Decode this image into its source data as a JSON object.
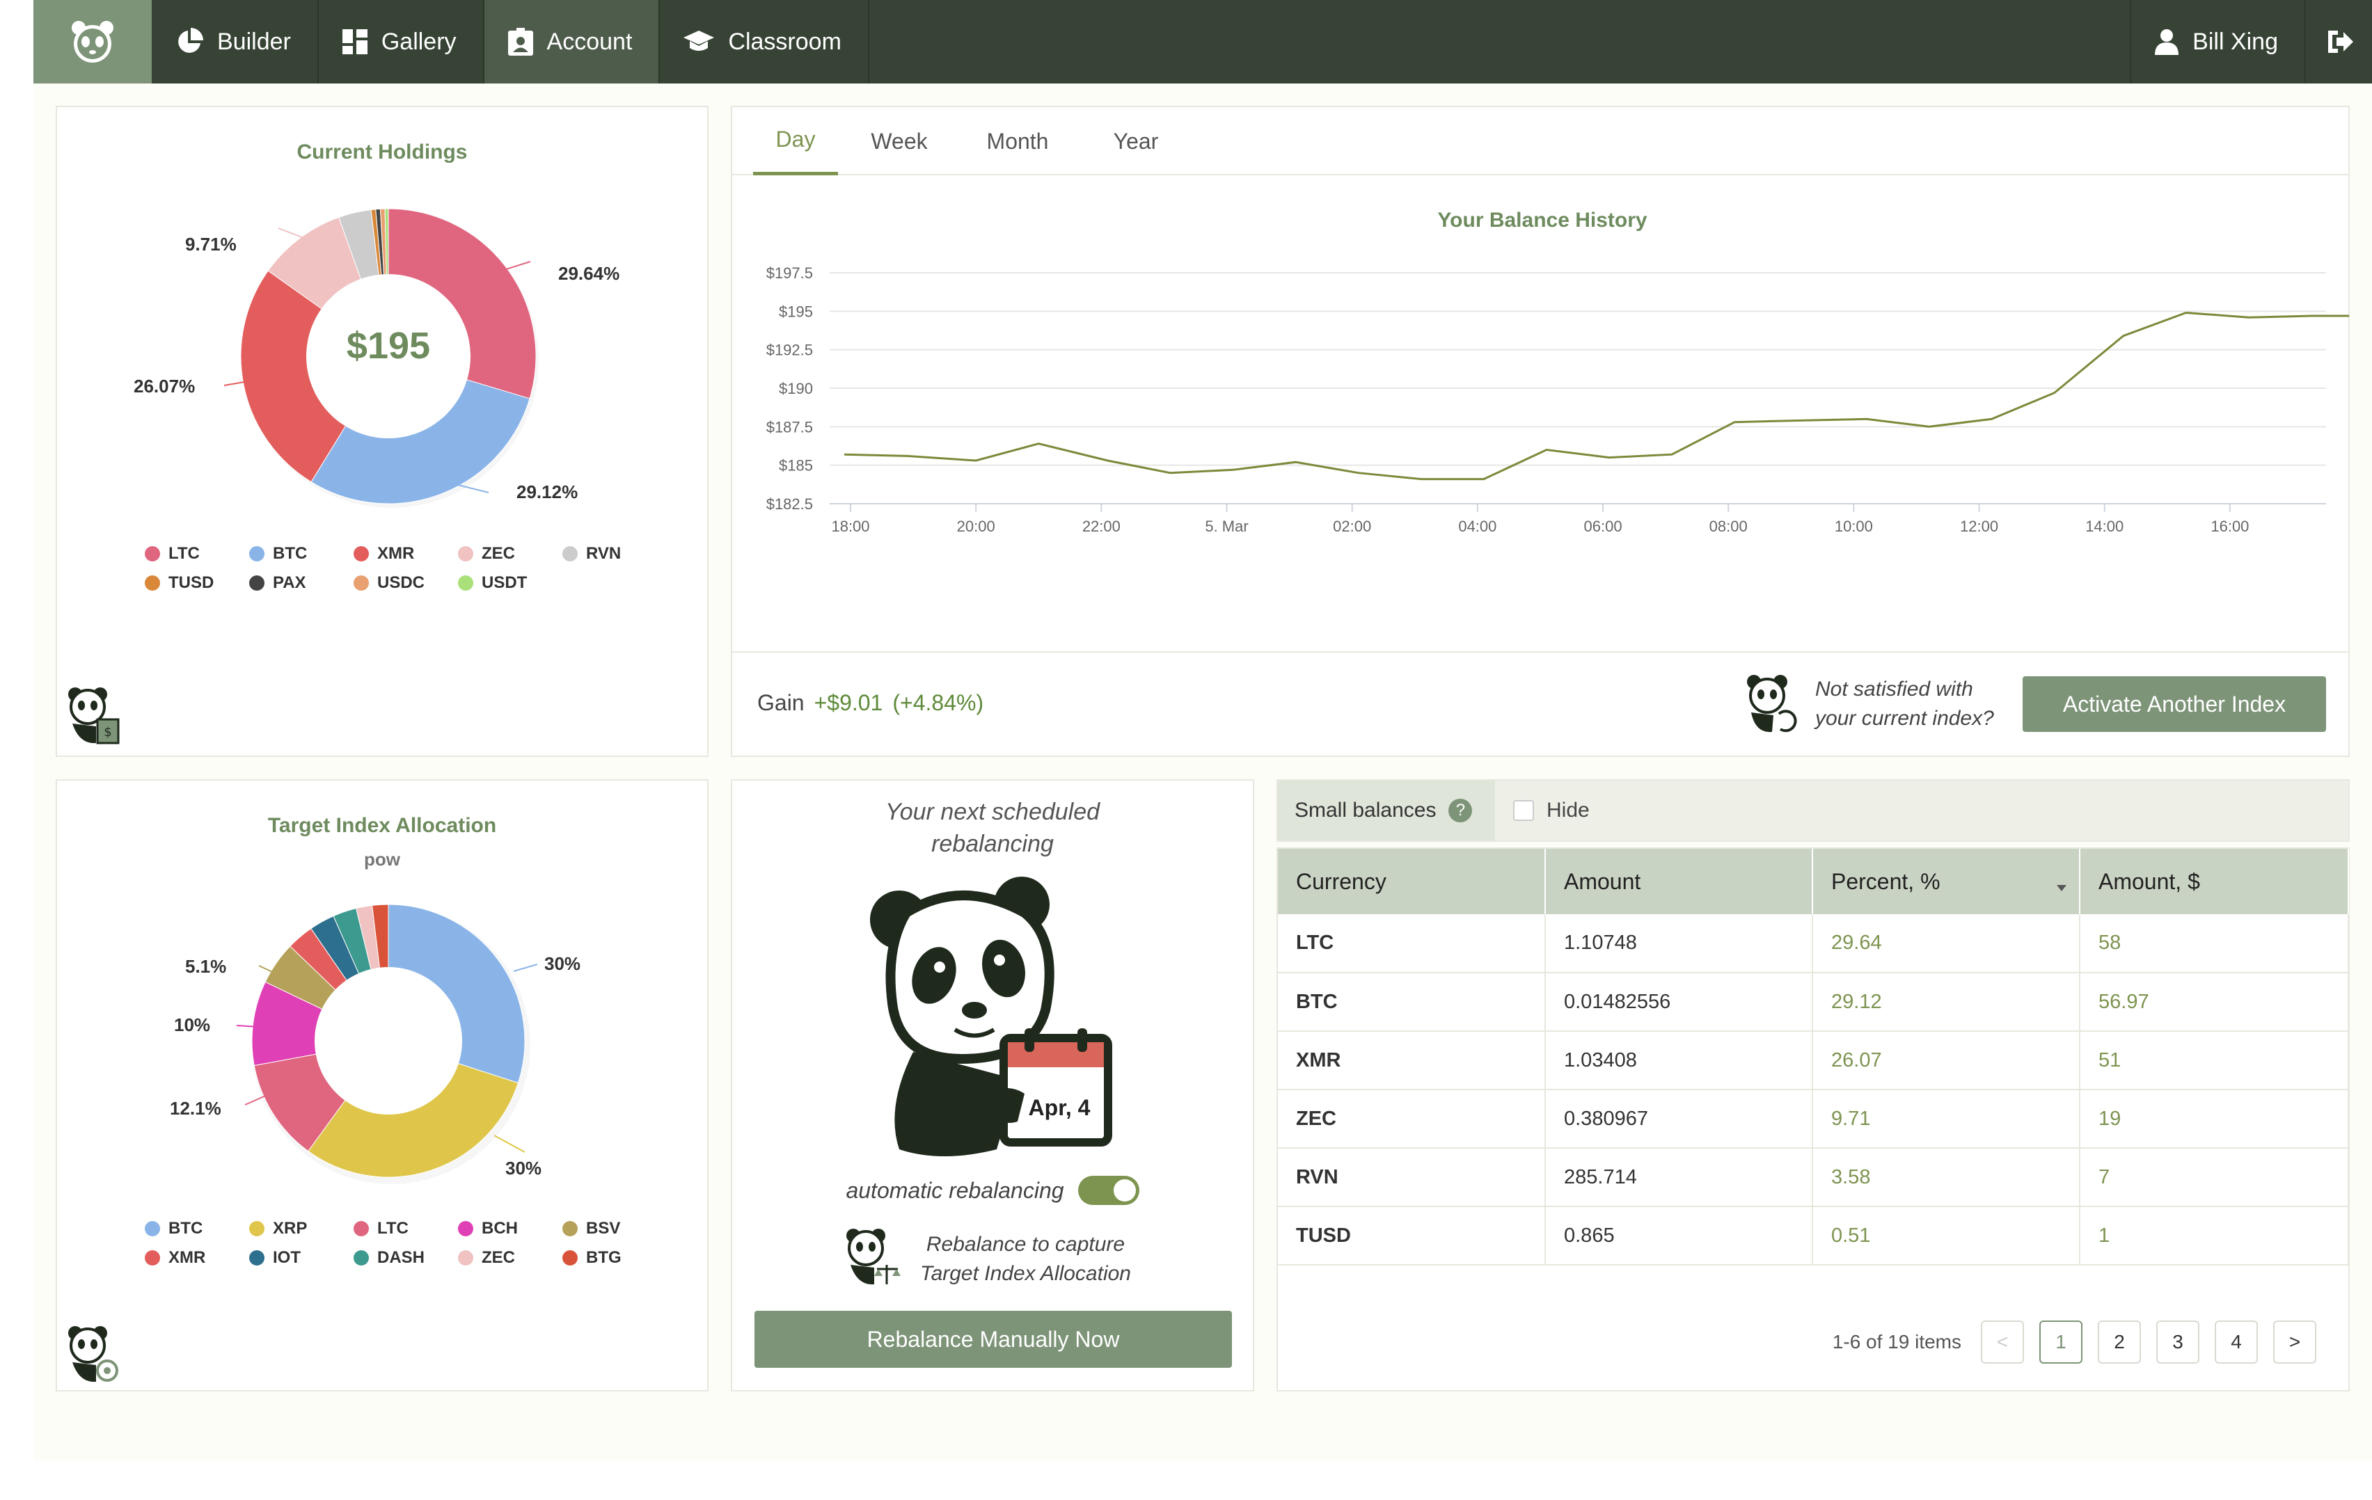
{
  "nav": {
    "items": [
      {
        "label": "Builder",
        "icon": "pie-chart-icon"
      },
      {
        "label": "Gallery",
        "icon": "dashboard-icon"
      },
      {
        "label": "Account",
        "icon": "id-card-icon"
      },
      {
        "label": "Classroom",
        "icon": "graduation-cap-icon"
      }
    ],
    "user": "Bill Xing"
  },
  "holdings": {
    "title": "Current Holdings",
    "total": "$195",
    "labels": {
      "a": "29.64%",
      "b": "29.12%",
      "c": "26.07%",
      "d": "9.71%"
    },
    "legend": [
      {
        "label": "LTC",
        "color": "#e06680"
      },
      {
        "label": "BTC",
        "color": "#8ab4e8"
      },
      {
        "label": "XMR",
        "color": "#e45d5d"
      },
      {
        "label": "ZEC",
        "color": "#f0c2c2"
      },
      {
        "label": "RVN",
        "color": "#cccccc"
      },
      {
        "label": "TUSD",
        "color": "#d9883a"
      },
      {
        "label": "PAX",
        "color": "#444444"
      },
      {
        "label": "USDC",
        "color": "#e8a070"
      },
      {
        "label": "USDT",
        "color": "#a9e07a"
      }
    ]
  },
  "balance": {
    "tabs": [
      "Day",
      "Week",
      "Month",
      "Year"
    ],
    "gain_label": "Gain",
    "gain_value": "+$9.01",
    "gain_pct": "(+4.84%)",
    "not_satisfied_1": "Not satisfied with",
    "not_satisfied_2": "your current index?",
    "activate_label": "Activate Another Index"
  },
  "chart_data": {
    "type": "line",
    "title": "Your Balance History",
    "y_ticks": [
      "$197.5",
      "$195",
      "$192.5",
      "$190",
      "$187.5",
      "$185",
      "$182.5"
    ],
    "x_ticks": [
      "18:00",
      "20:00",
      "22:00",
      "5. Mar",
      "02:00",
      "04:00",
      "06:00",
      "08:00",
      "10:00",
      "12:00",
      "14:00",
      "16:00"
    ],
    "ylim": [
      182.5,
      197.5
    ],
    "grid": true,
    "x": [
      -0.1,
      0.9,
      2.0,
      3.0,
      4.1,
      5.1,
      6.1,
      7.1,
      8.1,
      9.1,
      10.1,
      11.1,
      12.1,
      13.1,
      14.1,
      15.1,
      16.2,
      17.2,
      18.2,
      19.2,
      20.3,
      21.3,
      22.3,
      23.3,
      24.4
    ],
    "values": [
      185.7,
      185.6,
      185.3,
      186.4,
      185.3,
      184.5,
      184.7,
      185.2,
      184.5,
      184.1,
      184.1,
      186.0,
      185.5,
      185.7,
      187.8,
      187.9,
      188.0,
      187.5,
      188.0,
      189.7,
      193.4,
      194.9,
      194.6,
      194.7,
      null
    ]
  },
  "target": {
    "title": "Target Index Allocation",
    "subtitle": "pow",
    "labels": {
      "a": "30%",
      "b": "30%",
      "c": "12.1%",
      "d": "10%",
      "e": "5.1%"
    },
    "legend": [
      {
        "label": "BTC",
        "color": "#8ab4e8"
      },
      {
        "label": "XRP",
        "color": "#dfc64b"
      },
      {
        "label": "LTC",
        "color": "#e06680"
      },
      {
        "label": "BCH",
        "color": "#e040b5"
      },
      {
        "label": "BSV",
        "color": "#b5a15a"
      },
      {
        "label": "XMR",
        "color": "#e45d5d"
      },
      {
        "label": "IOT",
        "color": "#2d6f8e"
      },
      {
        "label": "DASH",
        "color": "#3d9a8f"
      },
      {
        "label": "ZEC",
        "color": "#f0c2c2"
      },
      {
        "label": "BTG",
        "color": "#d9533b"
      }
    ]
  },
  "rebalance": {
    "next_1": "Your next scheduled",
    "next_2": "rebalancing",
    "date": "Apr, 4",
    "auto_label": "automatic rebalancing",
    "capture_1": "Rebalance to capture",
    "capture_2": "Target Index Allocation",
    "button": "Rebalance Manually Now"
  },
  "table": {
    "small_balances": "Small balances",
    "help": "?",
    "hide": "Hide",
    "headers": [
      "Currency",
      "Amount",
      "Percent, %",
      "Amount, $"
    ],
    "rows": [
      {
        "currency": "LTC",
        "amount": "1.10748",
        "percent": "29.64",
        "usd": "58"
      },
      {
        "currency": "BTC",
        "amount": "0.01482556",
        "percent": "29.12",
        "usd": "56.97"
      },
      {
        "currency": "XMR",
        "amount": "1.03408",
        "percent": "26.07",
        "usd": "51"
      },
      {
        "currency": "ZEC",
        "amount": "0.380967",
        "percent": "9.71",
        "usd": "19"
      },
      {
        "currency": "RVN",
        "amount": "285.714",
        "percent": "3.58",
        "usd": "7"
      },
      {
        "currency": "TUSD",
        "amount": "0.865",
        "percent": "0.51",
        "usd": "1"
      }
    ],
    "range": "1-6 of 19 items",
    "prev": "<",
    "next": ">",
    "pages": [
      "1",
      "2",
      "3",
      "4"
    ]
  }
}
